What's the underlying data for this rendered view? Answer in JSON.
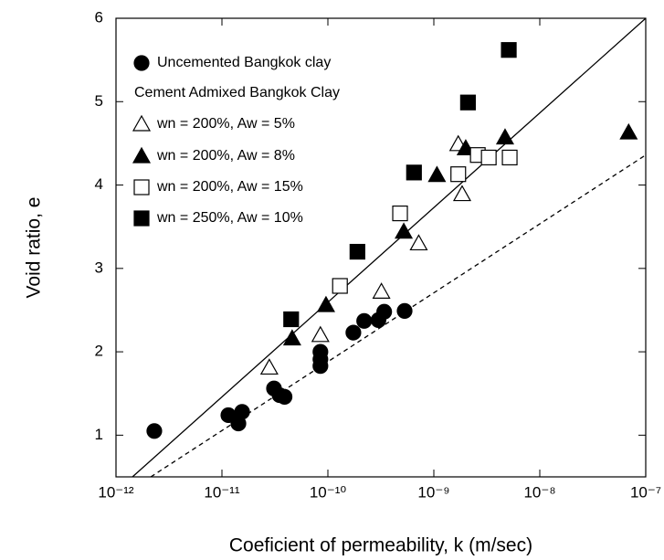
{
  "chart_data": {
    "type": "scatter",
    "xlabel": "Coeficient of permeability, k (m/sec)",
    "ylabel": "Void ratio, e",
    "xscale": "log",
    "xlim": [
      1e-12,
      1e-07
    ],
    "xticks": [
      {
        "value": 1e-12,
        "label": "10⁻¹²"
      },
      {
        "value": 1e-11,
        "label": "10⁻¹¹"
      },
      {
        "value": 1e-10,
        "label": "10⁻¹⁰"
      },
      {
        "value": 1e-09,
        "label": "10⁻⁹"
      },
      {
        "value": 1e-08,
        "label": "10⁻⁸"
      },
      {
        "value": 1e-07,
        "label": "10⁻⁷"
      }
    ],
    "ylim": [
      0.5,
      6
    ],
    "yticks": [
      1,
      2,
      3,
      4,
      5,
      6
    ],
    "legend_title": "Cement Admixed Bangkok Clay",
    "series": [
      {
        "name": "Uncemented Bangkok clay",
        "color": "#000000",
        "marker": "circle",
        "filled": true,
        "x": [
          2.3e-12,
          1.15e-11,
          1.43e-11,
          1.55e-11,
          3.1e-11,
          3.5e-11,
          3.9e-11,
          8.5e-11,
          8.5e-11,
          8.5e-11,
          1.74e-10,
          2.2e-10,
          3e-10,
          3.4e-10,
          5.3e-10
        ],
        "values": [
          1.05,
          1.24,
          1.14,
          1.28,
          1.56,
          1.48,
          1.46,
          2.0,
          1.91,
          1.83,
          2.23,
          2.37,
          2.38,
          2.48,
          2.49
        ]
      },
      {
        "name": "wn = 200%, Aw = 5%",
        "color": "#000000",
        "marker": "triangle",
        "filled": false,
        "x": [
          2.8e-11,
          8.5e-11,
          3.2e-10,
          7.2e-10,
          1.7e-09,
          1.85e-09
        ],
        "values": [
          1.81,
          2.2,
          2.72,
          3.3,
          4.49,
          3.89
        ]
      },
      {
        "name": "wn = 200%, Aw = 8%",
        "color": "#000000",
        "marker": "triangle",
        "filled": true,
        "x": [
          4.6e-11,
          9.6e-11,
          5.2e-10,
          1.07e-09,
          2e-09,
          4.7e-09,
          6.9e-08
        ],
        "values": [
          2.16,
          2.56,
          3.44,
          4.12,
          4.44,
          4.57,
          4.63
        ]
      },
      {
        "name": "wn = 200%, Aw = 15%",
        "color": "#000000",
        "marker": "square",
        "filled": false,
        "x": [
          1.3e-10,
          4.8e-10,
          1.7e-09,
          2.6e-09,
          3.3e-09,
          5.2e-09
        ],
        "values": [
          2.79,
          3.66,
          4.13,
          4.36,
          4.33,
          4.33
        ]
      },
      {
        "name": "wn = 250%, Aw = 10%",
        "color": "#000000",
        "marker": "square",
        "filled": true,
        "x": [
          4.5e-11,
          1.9e-10,
          6.5e-10,
          2.1e-09,
          5.1e-09
        ],
        "values": [
          2.39,
          3.2,
          4.15,
          4.99,
          5.62
        ]
      }
    ],
    "fit_lines": [
      {
        "style": "solid",
        "x": [
          1.43e-12,
          1e-07
        ],
        "values": [
          0.5,
          6
        ]
      },
      {
        "style": "dashed",
        "x": [
          2.13e-12,
          1e-07
        ],
        "values": [
          0.5,
          4.36
        ]
      }
    ]
  }
}
